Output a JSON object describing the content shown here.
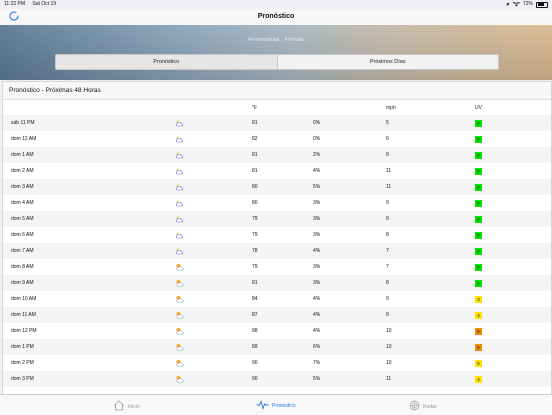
{
  "status_bar": {
    "time": "11:22 PM",
    "date": "Sat Oct 19",
    "battery": "72%",
    "battery_level": 0.72
  },
  "nav": {
    "title": "Pronóstico",
    "refresh_icon": "refresh-icon"
  },
  "hero": {
    "location": "Homestead , Florida"
  },
  "segments": [
    {
      "label": "Pronóstico",
      "active": true
    },
    {
      "label": "Próximos Días",
      "active": false
    }
  ],
  "forecast": {
    "title": "Pronóstico - Próximas 48 Horas",
    "columns": {
      "time": "",
      "icon": "",
      "temp": "°F",
      "precip": "",
      "wind": "mph",
      "uv": "UV"
    },
    "uv_colors": {
      "0": "#00e000",
      "1": "#00e000",
      "3": "#ffe000",
      "4": "#ffe000",
      "5": "#ffe000",
      "6": "#f08a00"
    },
    "rows": [
      {
        "time": "sáb 11 PM",
        "icon": "night-partly-cloudy-icon",
        "temp": "81",
        "precip": "0%",
        "wind": "5",
        "uv": "0"
      },
      {
        "time": "dom 12 AM",
        "icon": "night-partly-cloudy-icon",
        "temp": "82",
        "precip": "0%",
        "wind": "6",
        "uv": "0"
      },
      {
        "time": "dom 1 AM",
        "icon": "night-partly-cloudy-icon",
        "temp": "81",
        "precip": "2%",
        "wind": "9",
        "uv": "0"
      },
      {
        "time": "dom 2 AM",
        "icon": "night-partly-cloudy-icon",
        "temp": "81",
        "precip": "4%",
        "wind": "11",
        "uv": "0"
      },
      {
        "time": "dom 3 AM",
        "icon": "night-partly-cloudy-icon",
        "temp": "80",
        "precip": "5%",
        "wind": "11",
        "uv": "0"
      },
      {
        "time": "dom 4 AM",
        "icon": "night-partly-cloudy-icon",
        "temp": "80",
        "precip": "3%",
        "wind": "9",
        "uv": "0"
      },
      {
        "time": "dom 5 AM",
        "icon": "night-partly-cloudy-icon",
        "temp": "79",
        "precip": "3%",
        "wind": "9",
        "uv": "0"
      },
      {
        "time": "dom 6 AM",
        "icon": "night-partly-cloudy-icon",
        "temp": "79",
        "precip": "3%",
        "wind": "8",
        "uv": "0"
      },
      {
        "time": "dom 7 AM",
        "icon": "night-partly-cloudy-icon",
        "temp": "78",
        "precip": "4%",
        "wind": "7",
        "uv": "0"
      },
      {
        "time": "dom 8 AM",
        "icon": "day-partly-cloudy-icon",
        "temp": "79",
        "precip": "3%",
        "wind": "7",
        "uv": "0"
      },
      {
        "time": "dom 9 AM",
        "icon": "day-partly-cloudy-icon",
        "temp": "81",
        "precip": "3%",
        "wind": "8",
        "uv": "1"
      },
      {
        "time": "dom 10 AM",
        "icon": "day-partly-cloudy-icon",
        "temp": "84",
        "precip": "4%",
        "wind": "9",
        "uv": "3"
      },
      {
        "time": "dom 11 AM",
        "icon": "day-partly-cloudy-icon",
        "temp": "87",
        "precip": "4%",
        "wind": "9",
        "uv": "4"
      },
      {
        "time": "dom 12 PM",
        "icon": "day-partly-cloudy-icon",
        "temp": "88",
        "precip": "4%",
        "wind": "10",
        "uv": "6"
      },
      {
        "time": "dom 1 PM",
        "icon": "day-partly-cloudy-icon",
        "temp": "89",
        "precip": "6%",
        "wind": "10",
        "uv": "6"
      },
      {
        "time": "dom 2 PM",
        "icon": "day-partly-cloudy-icon",
        "temp": "90",
        "precip": "7%",
        "wind": "10",
        "uv": "5"
      },
      {
        "time": "dom 3 PM",
        "icon": "day-partly-cloudy-icon",
        "temp": "90",
        "precip": "5%",
        "wind": "11",
        "uv": "4"
      }
    ]
  },
  "tabs": [
    {
      "label": "Inicio",
      "icon": "home-icon",
      "active": false
    },
    {
      "label": "Pronóstico",
      "icon": "pulse-icon",
      "active": true
    },
    {
      "label": "Radar",
      "icon": "radar-icon",
      "active": false
    }
  ],
  "colors": {
    "accent": "#1f7ae0",
    "inactive_tab": "#9a9a9a"
  }
}
